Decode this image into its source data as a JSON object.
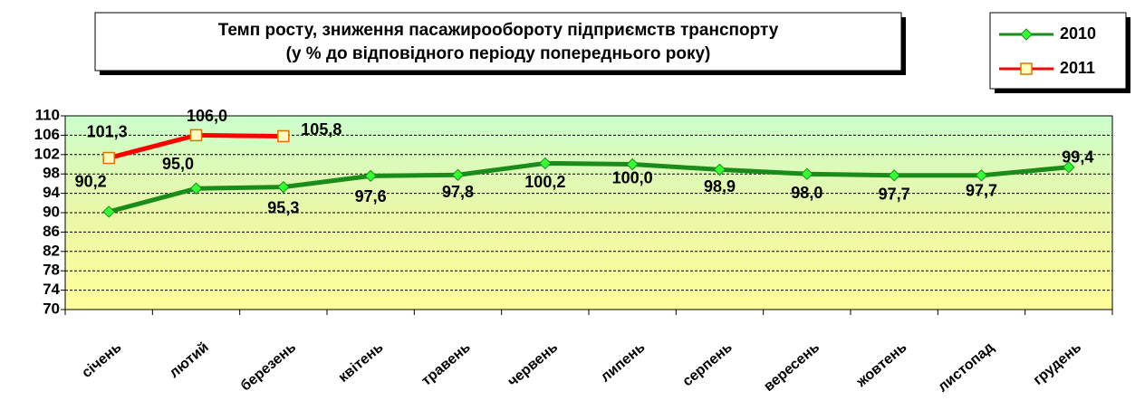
{
  "chart_data": {
    "type": "line",
    "title": "Темп росту, зниження пасажирообороту підприємств транспорту",
    "subtitle": "(у % до відповідного періоду попереднього року)",
    "categories": [
      "січень",
      "лютий",
      "березень",
      "квітень",
      "травень",
      "червень",
      "липень",
      "серпень",
      "вересень",
      "жовтень",
      "листопад",
      "грудень"
    ],
    "series": [
      {
        "name": "2010",
        "color": "#1a8c1a",
        "marker_color": "#33ff33",
        "marker": "diamond",
        "values": [
          90.2,
          95.0,
          95.3,
          97.6,
          97.8,
          100.2,
          100.0,
          98.9,
          98.0,
          97.7,
          97.7,
          99.4
        ],
        "value_labels": [
          "90,2",
          "95,0",
          "95,3",
          "97,6",
          "97,8",
          "100,2",
          "100,0",
          "98,9",
          "98,0",
          "97,7",
          "97,7",
          "99,4"
        ]
      },
      {
        "name": "2011",
        "color": "#ff0000",
        "marker_color": "#ffffc0",
        "marker": "square",
        "values": [
          101.3,
          106.0,
          105.8,
          null,
          null,
          null,
          null,
          null,
          null,
          null,
          null,
          null
        ],
        "value_labels": [
          "101,3",
          "106,0",
          "105,8",
          null,
          null,
          null,
          null,
          null,
          null,
          null,
          null,
          null
        ]
      }
    ],
    "ylim": [
      70,
      110
    ],
    "yticks": [
      70,
      74,
      78,
      82,
      86,
      90,
      94,
      98,
      102,
      106,
      110
    ],
    "grid": true,
    "legend": "upper right"
  }
}
